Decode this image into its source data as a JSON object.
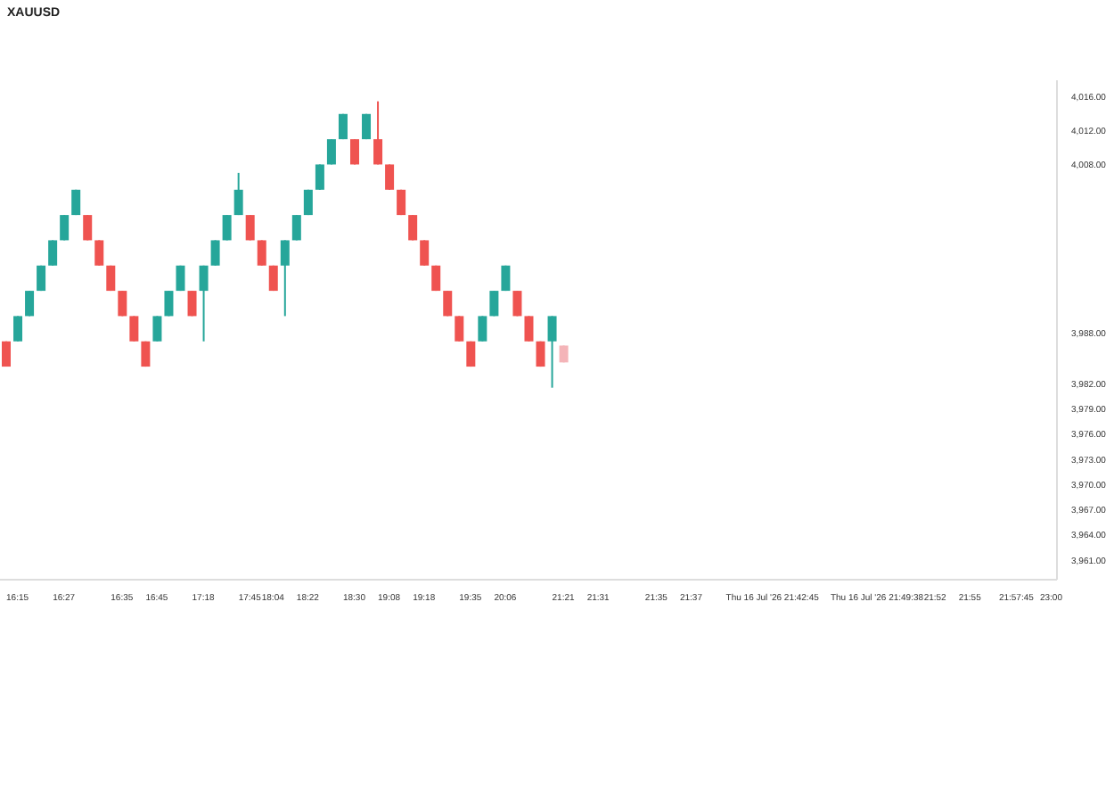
{
  "chart_data": {
    "type": "candlestick",
    "title": "XAUUSD",
    "categories": [
      null,
      "16:15",
      null,
      null,
      null,
      "16:27",
      null,
      null,
      null,
      null,
      "16:35",
      null,
      null,
      "16:45",
      null,
      null,
      null,
      "17:18",
      null,
      null,
      null,
      "17:45",
      null,
      "18:04",
      null,
      null,
      "18:22",
      null,
      null,
      null,
      "18:30",
      null,
      null,
      "19:08",
      null,
      null,
      "19:18",
      null,
      null,
      null,
      "19:35",
      null,
      null,
      "20:06",
      null,
      null,
      null,
      null,
      "21:21",
      null,
      null,
      "21:31",
      null,
      null,
      null,
      null,
      "21:35",
      null,
      null,
      "21:37",
      null,
      null,
      null,
      null,
      null,
      null,
      "Thu 16 Jul '26  21:42:45",
      null,
      null,
      null,
      null,
      null,
      null,
      null,
      null,
      "Thu 16 Jul '26  21:49:38",
      null,
      null,
      null,
      null,
      "21:52",
      null,
      null,
      "21:55",
      null,
      null,
      null,
      "21:57:45",
      null,
      null,
      "23:00"
    ],
    "ohlc": [
      [
        3987,
        3987,
        3984,
        3984
      ],
      [
        3987,
        3990,
        3987,
        3990
      ],
      [
        3990,
        3993,
        3990,
        3993
      ],
      [
        3993,
        3996,
        3993,
        3996
      ],
      [
        3996,
        3999,
        3996,
        3999
      ],
      [
        3999,
        4002,
        3999,
        4002
      ],
      [
        4002,
        4005,
        4002,
        4005
      ],
      [
        4002,
        4002,
        3999,
        3999
      ],
      [
        3999,
        3999,
        3996,
        3996
      ],
      [
        3996,
        3996,
        3993,
        3993
      ],
      [
        3993,
        3993,
        3990,
        3990
      ],
      [
        3990,
        3990,
        3987,
        3987
      ],
      [
        3987,
        3987,
        3984,
        3984
      ],
      [
        3987,
        3990,
        3987,
        3990
      ],
      [
        3990,
        3993,
        3990,
        3993
      ],
      [
        3993,
        3996,
        3993,
        3996
      ],
      [
        3993,
        3993,
        3990,
        3990
      ],
      [
        3993,
        3996,
        3987,
        3996
      ],
      [
        3996,
        3999,
        3996,
        3999
      ],
      [
        3999,
        4002,
        3999,
        4002
      ],
      [
        4002,
        4007,
        4002,
        4005
      ],
      [
        4002,
        4002,
        3999,
        3999
      ],
      [
        3999,
        3999,
        3996,
        3996
      ],
      [
        3996,
        3996,
        3993,
        3993
      ],
      [
        3996,
        3999,
        3990,
        3999
      ],
      [
        3999,
        4002,
        3999,
        4002
      ],
      [
        4002,
        4005,
        4002,
        4005
      ],
      [
        4005,
        4008,
        4005,
        4008
      ],
      [
        4008,
        4011,
        4008,
        4011
      ],
      [
        4011,
        4014,
        4011,
        4014
      ],
      [
        4011,
        4011,
        4008,
        4008
      ],
      [
        4011,
        4014,
        4011,
        4014
      ],
      [
        4011,
        4015.5,
        4008,
        4008
      ],
      [
        4008,
        4008,
        4005,
        4005
      ],
      [
        4005,
        4005,
        4002,
        4002
      ],
      [
        4002,
        4002,
        3999,
        3999
      ],
      [
        3999,
        3999,
        3996,
        3996
      ],
      [
        3996,
        3996,
        3993,
        3993
      ],
      [
        3993,
        3993,
        3990,
        3990
      ],
      [
        3990,
        3990,
        3987,
        3987
      ],
      [
        3987,
        3987,
        3984,
        3984
      ],
      [
        3987,
        3990,
        3987,
        3990
      ],
      [
        3990,
        3993,
        3990,
        3993
      ],
      [
        3993,
        3996,
        3993,
        3996
      ],
      [
        3993,
        3993,
        3990,
        3990
      ],
      [
        3990,
        3990,
        3987,
        3987
      ],
      [
        3987,
        3987,
        3984,
        3984
      ],
      [
        3987,
        3990,
        3981.5,
        3990
      ],
      [
        3986.5,
        3986.5,
        3984.5,
        3984.5
      ],
      null,
      null,
      null,
      null,
      null,
      null,
      null,
      null,
      null,
      null,
      null,
      null,
      null,
      null,
      null,
      null,
      null,
      null,
      null,
      null,
      null,
      null,
      null,
      null,
      null,
      null,
      null,
      null,
      null,
      null,
      null,
      null,
      null,
      null,
      null,
      null,
      null,
      null,
      null,
      null,
      null,
      null
    ],
    "colors": [
      "#ef5350",
      "#26a69a",
      "#26a69a",
      "#26a69a",
      "#26a69a",
      "#26a69a",
      "#26a69a",
      "#ef5350",
      "#ef5350",
      "#ef5350",
      "#ef5350",
      "#ef5350",
      "#ef5350",
      "#26a69a",
      "#26a69a",
      "#26a69a",
      "#ef5350",
      "#26a69a",
      "#26a69a",
      "#26a69a",
      "#26a69a",
      "#ef5350",
      "#ef5350",
      "#ef5350",
      "#26a69a",
      "#26a69a",
      "#26a69a",
      "#26a69a",
      "#26a69a",
      "#26a69a",
      "#ef5350",
      "#26a69a",
      "#ef5350",
      "#ef5350",
      "#ef5350",
      "#ef5350",
      "#ef5350",
      "#ef5350",
      "#ef5350",
      "#ef5350",
      "#ef5350",
      "#26a69a",
      "#26a69a",
      "#26a69a",
      "#ef5350",
      "#ef5350",
      "#ef5350",
      "#26a69a",
      "#f4b4b8",
      null,
      null,
      null,
      null,
      null,
      null,
      null,
      null,
      null,
      null,
      null,
      null,
      null,
      null,
      null,
      null,
      null,
      null,
      null,
      null,
      null,
      null,
      null,
      null,
      null,
      null,
      null,
      null,
      null,
      null,
      null,
      null,
      null,
      null,
      null,
      null,
      null,
      null,
      null,
      null,
      null,
      null
    ],
    "ylim": [
      3958.7,
      4018
    ],
    "yticks": [
      {
        "value": 4016,
        "label": "4,016.00"
      },
      {
        "value": 4012,
        "label": "4,012.00"
      },
      {
        "value": 4008,
        "label": "4,008.00"
      },
      {
        "value": 3988,
        "label": "3,988.00"
      },
      {
        "value": 3982,
        "label": "3,982.00"
      },
      {
        "value": 3979,
        "label": "3,979.00"
      },
      {
        "value": 3976,
        "label": "3,976.00"
      },
      {
        "value": 3973,
        "label": "3,973.00"
      },
      {
        "value": 3970,
        "label": "3,970.00"
      },
      {
        "value": 3967,
        "label": "3,967.00"
      },
      {
        "value": 3964,
        "label": "3,964.00"
      },
      {
        "value": 3961,
        "label": "3,961.00"
      }
    ]
  }
}
